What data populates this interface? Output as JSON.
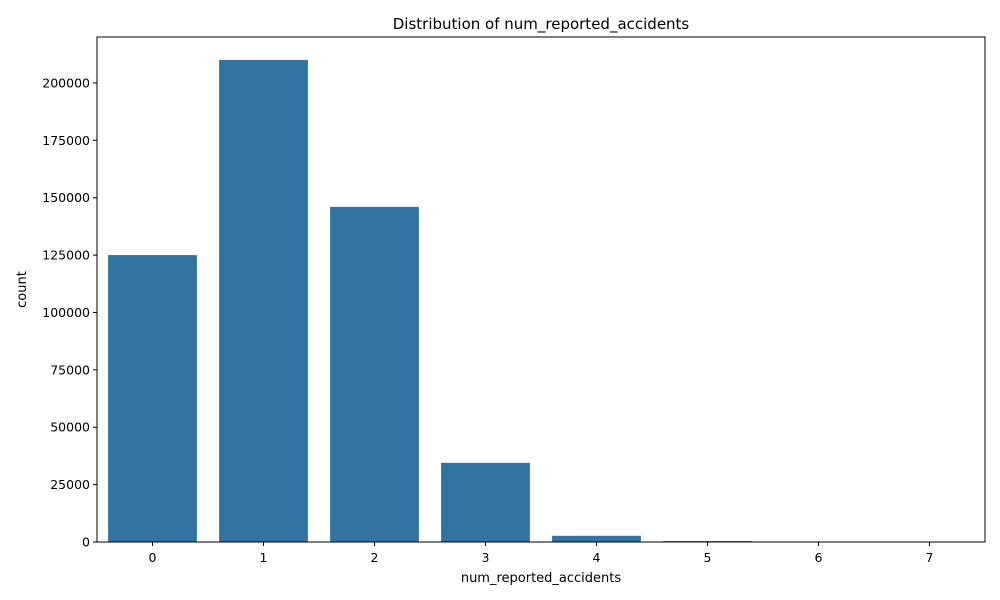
{
  "chart_data": {
    "type": "bar",
    "title": "Distribution of num_reported_accidents",
    "xlabel": "num_reported_accidents",
    "ylabel": "count",
    "categories": [
      "0",
      "1",
      "2",
      "3",
      "4",
      "5",
      "6",
      "7"
    ],
    "values": [
      125000,
      210000,
      146000,
      34500,
      2700,
      400,
      30,
      5
    ],
    "ylim": [
      0,
      220000
    ],
    "yticks": [
      0,
      25000,
      50000,
      75000,
      100000,
      125000,
      150000,
      175000,
      200000
    ],
    "ytick_labels": [
      "0",
      "25000",
      "50000",
      "75000",
      "100000",
      "125000",
      "150000",
      "175000",
      "200000"
    ],
    "bar_color": "#3274a1",
    "grid": false,
    "legend": false
  }
}
